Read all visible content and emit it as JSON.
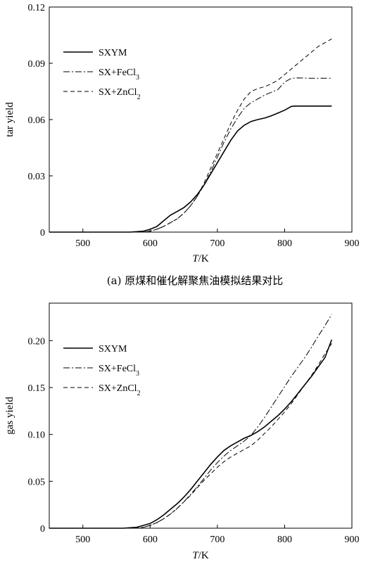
{
  "chart_data": [
    {
      "type": "line",
      "caption": "(a) 原煤和催化解聚焦油模拟结果对比",
      "xlabel": "T/K",
      "ylabel": "tar yield",
      "xlim": [
        450,
        900
      ],
      "ylim": [
        0,
        0.12
      ],
      "xticks": [
        500,
        600,
        700,
        800,
        900
      ],
      "yticks": [
        0,
        0.03,
        0.06,
        0.09,
        0.12
      ],
      "ytick_labels": [
        "0",
        "0.03",
        "0.06",
        "0.09",
        "0.12"
      ],
      "xtick_labels": [
        "500",
        "600",
        "700",
        "800",
        "900"
      ],
      "grid": false,
      "legend_position": "upper-left",
      "series": [
        {
          "name": "SXYM",
          "style": "solid",
          "x": [
            450,
            570,
            590,
            600,
            610,
            620,
            630,
            640,
            650,
            660,
            670,
            680,
            690,
            700,
            710,
            720,
            730,
            740,
            750,
            760,
            770,
            780,
            790,
            800,
            810,
            815,
            830,
            850,
            870
          ],
          "y": [
            0,
            0,
            0.0005,
            0.0015,
            0.003,
            0.006,
            0.009,
            0.011,
            0.013,
            0.016,
            0.02,
            0.025,
            0.031,
            0.037,
            0.043,
            0.049,
            0.054,
            0.057,
            0.059,
            0.06,
            0.0608,
            0.062,
            0.0635,
            0.065,
            0.067,
            0.0672,
            0.0672,
            0.0672,
            0.0672
          ]
        },
        {
          "name": "SX+FeCl3",
          "style": "dash-dot",
          "x": [
            450,
            590,
            600,
            610,
            620,
            630,
            640,
            650,
            660,
            670,
            680,
            690,
            700,
            710,
            720,
            730,
            740,
            750,
            760,
            770,
            780,
            790,
            800,
            810,
            820,
            840,
            860,
            870
          ],
          "y": [
            0,
            0,
            0.0005,
            0.0015,
            0.003,
            0.005,
            0.007,
            0.01,
            0.014,
            0.019,
            0.025,
            0.032,
            0.04,
            0.048,
            0.055,
            0.061,
            0.066,
            0.069,
            0.071,
            0.073,
            0.0745,
            0.076,
            0.08,
            0.082,
            0.0822,
            0.082,
            0.082,
            0.082
          ]
        },
        {
          "name": "SX+ZnCl2",
          "style": "dashed",
          "x": [
            450,
            590,
            600,
            610,
            620,
            630,
            640,
            650,
            660,
            670,
            680,
            690,
            700,
            710,
            720,
            730,
            740,
            750,
            760,
            770,
            780,
            790,
            800,
            810,
            820,
            830,
            840,
            850,
            860,
            870
          ],
          "y": [
            0,
            0,
            0.0005,
            0.0015,
            0.003,
            0.005,
            0.007,
            0.01,
            0.014,
            0.019,
            0.026,
            0.034,
            0.042,
            0.05,
            0.058,
            0.065,
            0.071,
            0.075,
            0.0765,
            0.0775,
            0.079,
            0.081,
            0.084,
            0.087,
            0.09,
            0.093,
            0.096,
            0.099,
            0.101,
            0.103
          ]
        }
      ]
    },
    {
      "type": "line",
      "xlabel": "T/K",
      "ylabel": "gas yield",
      "xlim": [
        450,
        900
      ],
      "ylim": [
        0,
        0.24
      ],
      "xticks": [
        500,
        600,
        700,
        800,
        900
      ],
      "yticks": [
        0,
        0.05,
        0.1,
        0.15,
        0.2
      ],
      "ytick_labels": [
        "0",
        "0.05",
        "0.10",
        "0.15",
        "0.20"
      ],
      "xtick_labels": [
        "500",
        "600",
        "700",
        "800",
        "900"
      ],
      "grid": false,
      "legend_position": "upper-left",
      "series": [
        {
          "name": "SXYM",
          "style": "solid",
          "x": [
            450,
            560,
            580,
            590,
            600,
            610,
            620,
            630,
            640,
            650,
            660,
            670,
            680,
            690,
            700,
            710,
            720,
            730,
            740,
            750,
            760,
            770,
            780,
            790,
            800,
            810,
            820,
            830,
            840,
            850,
            860,
            870
          ],
          "y": [
            0,
            0,
            0.001,
            0.003,
            0.005,
            0.009,
            0.014,
            0.02,
            0.026,
            0.033,
            0.041,
            0.05,
            0.059,
            0.068,
            0.076,
            0.083,
            0.088,
            0.092,
            0.096,
            0.099,
            0.103,
            0.108,
            0.114,
            0.12,
            0.127,
            0.135,
            0.144,
            0.153,
            0.162,
            0.172,
            0.182,
            0.201
          ]
        },
        {
          "name": "SX+FeCl3",
          "style": "dash-dot",
          "x": [
            450,
            580,
            590,
            600,
            610,
            620,
            630,
            640,
            650,
            660,
            670,
            680,
            690,
            700,
            710,
            720,
            730,
            740,
            750,
            760,
            770,
            780,
            790,
            800,
            810,
            820,
            830,
            840,
            850,
            860,
            870
          ],
          "y": [
            0,
            0,
            0.001,
            0.003,
            0.006,
            0.01,
            0.015,
            0.021,
            0.028,
            0.036,
            0.044,
            0.053,
            0.062,
            0.07,
            0.077,
            0.083,
            0.088,
            0.093,
            0.099,
            0.108,
            0.118,
            0.129,
            0.14,
            0.151,
            0.162,
            0.172,
            0.182,
            0.193,
            0.205,
            0.216,
            0.228
          ]
        },
        {
          "name": "SX+ZnCl2",
          "style": "dashed",
          "x": [
            450,
            580,
            590,
            600,
            610,
            620,
            630,
            640,
            650,
            660,
            670,
            680,
            690,
            700,
            710,
            720,
            730,
            740,
            750,
            760,
            770,
            780,
            790,
            800,
            810,
            820,
            830,
            840,
            850,
            860,
            870
          ],
          "y": [
            0,
            0,
            0.001,
            0.003,
            0.006,
            0.01,
            0.015,
            0.021,
            0.028,
            0.035,
            0.043,
            0.051,
            0.058,
            0.065,
            0.071,
            0.076,
            0.08,
            0.084,
            0.088,
            0.094,
            0.101,
            0.108,
            0.116,
            0.124,
            0.133,
            0.143,
            0.153,
            0.163,
            0.174,
            0.186,
            0.197
          ]
        }
      ]
    }
  ]
}
